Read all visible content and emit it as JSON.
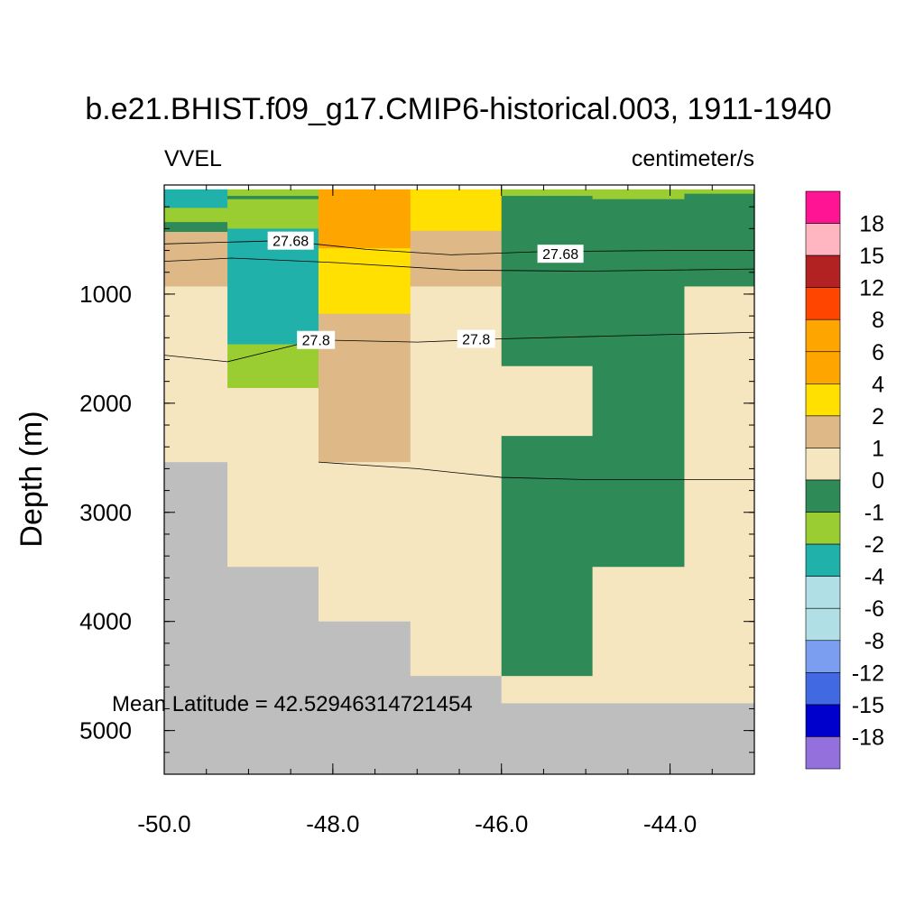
{
  "chart_data": {
    "type": "heatmap",
    "title": "b.e21.BHIST.f09_g17.CMIP6-historical.003, 1911-1940",
    "left_label": "VVEL",
    "right_label": "centimeter/s",
    "ylabel": "Depth (m)",
    "xlabel": "",
    "xlim": [
      -50.0,
      -43.0
    ],
    "ylim": [
      5400,
      0
    ],
    "xticks": [
      {
        "value": -50.0,
        "label": "-50.0"
      },
      {
        "value": -48.0,
        "label": "-48.0"
      },
      {
        "value": -46.0,
        "label": "-46.0"
      },
      {
        "value": -44.0,
        "label": "-44.0"
      }
    ],
    "yticks": [
      {
        "value": 1000,
        "label": "1000"
      },
      {
        "value": 2000,
        "label": "2000"
      },
      {
        "value": 3000,
        "label": "3000"
      },
      {
        "value": 4000,
        "label": "4000"
      },
      {
        "value": 5000,
        "label": "5000"
      }
    ],
    "annotation": "Mean Latitude = 42.52946314721454",
    "colorbar": {
      "labels": [
        "18",
        "15",
        "12",
        "8",
        "6",
        "4",
        "2",
        "1",
        "0",
        "-1",
        "-2",
        "-4",
        "-6",
        "-8",
        "-12",
        "-15",
        "-18"
      ],
      "colors": [
        "#ff1493",
        "#ffb6c1",
        "#b22222",
        "#ff4500",
        "#ffa500",
        "#ffa500",
        "#ffe000",
        "#deb887",
        "#f5e6c0",
        "#2e8b57",
        "#9acd32",
        "#20b2aa",
        "#b0e0e6",
        "#b0e0e6",
        "#7b9ef0",
        "#4169e1",
        "#0000cd",
        "#9370db"
      ]
    },
    "land_color": "#bebebe",
    "columns": [
      {
        "x0": -50.0,
        "x1": -49.25,
        "cells": [
          [
            40,
            210,
            "#20b2aa"
          ],
          [
            210,
            340,
            "#9acd32"
          ],
          [
            340,
            430,
            "#2e8b57"
          ],
          [
            430,
            930,
            "#deb887"
          ],
          [
            930,
            2540,
            "#f5e6c0"
          ],
          [
            2540,
            5400,
            "#bebebe"
          ]
        ]
      },
      {
        "x0": -49.25,
        "x1": -48.17,
        "cells": [
          [
            40,
            100,
            "#9acd32"
          ],
          [
            100,
            130,
            "#2e8b57"
          ],
          [
            130,
            400,
            "#9acd32"
          ],
          [
            400,
            1460,
            "#20b2aa"
          ],
          [
            1460,
            1860,
            "#9acd32"
          ],
          [
            1860,
            3500,
            "#f5e6c0"
          ],
          [
            3500,
            5400,
            "#bebebe"
          ]
        ]
      },
      {
        "x0": -48.17,
        "x1": -47.08,
        "cells": [
          [
            40,
            580,
            "#ffa500"
          ],
          [
            580,
            1180,
            "#ffe000"
          ],
          [
            1180,
            2540,
            "#deb887"
          ],
          [
            2540,
            4000,
            "#f5e6c0"
          ],
          [
            4000,
            5400,
            "#bebebe"
          ]
        ]
      },
      {
        "x0": -47.08,
        "x1": -46.0,
        "cells": [
          [
            40,
            420,
            "#ffe000"
          ],
          [
            420,
            930,
            "#deb887"
          ],
          [
            930,
            4500,
            "#f5e6c0"
          ],
          [
            4500,
            5400,
            "#bebebe"
          ]
        ]
      },
      {
        "x0": -46.0,
        "x1": -44.92,
        "cells": [
          [
            40,
            100,
            "#9acd32"
          ],
          [
            100,
            1660,
            "#2e8b57"
          ],
          [
            1660,
            2300,
            "#f5e6c0"
          ],
          [
            2300,
            4500,
            "#2e8b57"
          ],
          [
            4500,
            4750,
            "#f5e6c0"
          ],
          [
            4750,
            5400,
            "#bebebe"
          ]
        ]
      },
      {
        "x0": -44.92,
        "x1": -43.83,
        "cells": [
          [
            40,
            130,
            "#9acd32"
          ],
          [
            130,
            3500,
            "#2e8b57"
          ],
          [
            3500,
            4750,
            "#f5e6c0"
          ],
          [
            4750,
            5400,
            "#bebebe"
          ]
        ]
      },
      {
        "x0": -43.83,
        "x1": -43.0,
        "cells": [
          [
            40,
            80,
            "#9acd32"
          ],
          [
            80,
            930,
            "#2e8b57"
          ],
          [
            930,
            4750,
            "#f5e6c0"
          ],
          [
            4750,
            5400,
            "#bebebe"
          ]
        ]
      }
    ],
    "contours": [
      {
        "label": "27.68",
        "points": [
          [
            -50.0,
            540
          ],
          [
            -48.6,
            510
          ],
          [
            -47.6,
            590
          ],
          [
            -46.6,
            640
          ],
          [
            -45.5,
            610
          ],
          [
            -44.0,
            600
          ],
          [
            -43.0,
            600
          ]
        ],
        "label_positions": [
          [
            -48.5,
            510
          ],
          [
            -45.3,
            630
          ]
        ]
      },
      {
        "label": "",
        "points": [
          [
            -50.0,
            700
          ],
          [
            -49.2,
            670
          ],
          [
            -48.0,
            710
          ],
          [
            -46.5,
            780
          ],
          [
            -45.0,
            790
          ],
          [
            -43.0,
            770
          ]
        ],
        "label_positions": []
      },
      {
        "label": "27.8",
        "points": [
          [
            -50.0,
            1560
          ],
          [
            -49.25,
            1620
          ],
          [
            -48.2,
            1420
          ],
          [
            -47.0,
            1440
          ],
          [
            -46.0,
            1410
          ],
          [
            -44.5,
            1380
          ],
          [
            -43.0,
            1350
          ]
        ],
        "label_positions": [
          [
            -48.2,
            1420
          ],
          [
            -46.3,
            1410
          ]
        ]
      },
      {
        "label": "",
        "points": [
          [
            -48.17,
            2540
          ],
          [
            -47.0,
            2600
          ],
          [
            -46.0,
            2680
          ],
          [
            -45.0,
            2700
          ],
          [
            -43.0,
            2700
          ]
        ],
        "label_positions": []
      }
    ]
  }
}
